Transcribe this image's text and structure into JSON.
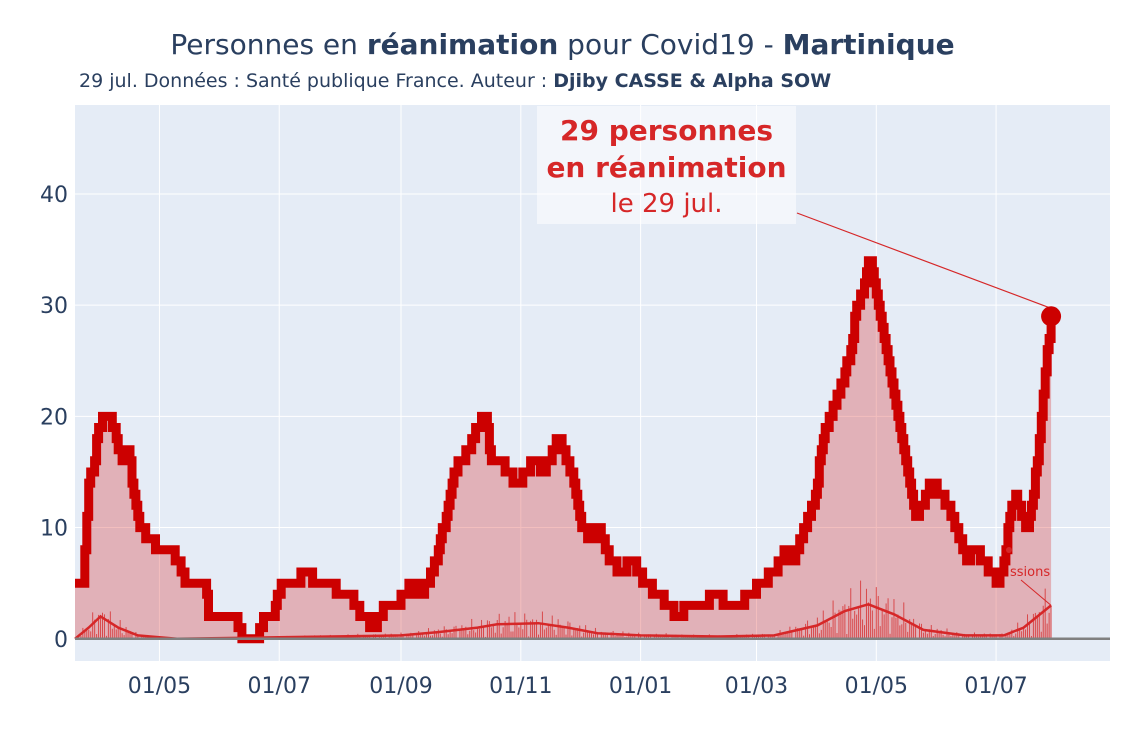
{
  "header": {
    "title_pre": "Personnes en ",
    "title_bold1": "réanimation",
    "title_mid": " pour Covid19 - ",
    "title_bold2": "Martinique",
    "subtitle_pre": "29 jul. Données : Santé publique France. Auteur : ",
    "subtitle_bold": "Djiby CASSE & Alpha SOW"
  },
  "annotation": {
    "line1": "29 personnes",
    "line2": "en réanimation",
    "line3": "le 29 jul."
  },
  "admissions_label": "ssions",
  "colors": {
    "main_line": "#cc0000",
    "fill": "rgba(214,39,40,0.30)",
    "admissions": "#d62728",
    "plot_bg": "#e5ecf6",
    "grid": "#ffffff",
    "zero_line": "#808080",
    "text": "#2a3f5f"
  },
  "chart_data": {
    "type": "area",
    "title": "Personnes en réanimation pour Covid19 - Martinique",
    "x_start": "2020-03-19",
    "x_end": "2021-07-29",
    "xlim": [
      "2020-03-19",
      "2021-08-28"
    ],
    "ylim": [
      -2,
      48
    ],
    "x_ticks": [
      {
        "date": "2020-05-01",
        "label": "01/05"
      },
      {
        "date": "2020-07-01",
        "label": "01/07"
      },
      {
        "date": "2020-09-01",
        "label": "01/09"
      },
      {
        "date": "2020-11-01",
        "label": "01/11"
      },
      {
        "date": "2021-01-01",
        "label": "01/01"
      },
      {
        "date": "2021-03-01",
        "label": "01/03"
      },
      {
        "date": "2021-05-01",
        "label": "01/05"
      },
      {
        "date": "2021-07-01",
        "label": "01/07"
      }
    ],
    "y_ticks": [
      0,
      10,
      20,
      30,
      40
    ],
    "grid": true,
    "series": [
      {
        "name": "réanimation",
        "points": [
          [
            "2020-03-19",
            5
          ],
          [
            "2020-03-23",
            5
          ],
          [
            "2020-03-26",
            14
          ],
          [
            "2020-03-28",
            15
          ],
          [
            "2020-03-31",
            19
          ],
          [
            "2020-04-03",
            20
          ],
          [
            "2020-04-06",
            20
          ],
          [
            "2020-04-09",
            18
          ],
          [
            "2020-04-12",
            16
          ],
          [
            "2020-04-15",
            17
          ],
          [
            "2020-04-18",
            13
          ],
          [
            "2020-04-21",
            10
          ],
          [
            "2020-04-26",
            9
          ],
          [
            "2020-05-01",
            8
          ],
          [
            "2020-05-06",
            8
          ],
          [
            "2020-05-10",
            7
          ],
          [
            "2020-05-14",
            5
          ],
          [
            "2020-05-20",
            5
          ],
          [
            "2020-05-24",
            5
          ],
          [
            "2020-05-26",
            2
          ],
          [
            "2020-06-08",
            2
          ],
          [
            "2020-06-12",
            0
          ],
          [
            "2020-06-20",
            0
          ],
          [
            "2020-06-24",
            2
          ],
          [
            "2020-06-28",
            2
          ],
          [
            "2020-07-02",
            5
          ],
          [
            "2020-07-10",
            5
          ],
          [
            "2020-07-14",
            6
          ],
          [
            "2020-07-21",
            5
          ],
          [
            "2020-08-06",
            4
          ],
          [
            "2020-08-12",
            2
          ],
          [
            "2020-08-18",
            1
          ],
          [
            "2020-08-24",
            3
          ],
          [
            "2020-08-29",
            3
          ],
          [
            "2020-09-03",
            4
          ],
          [
            "2020-09-07",
            5
          ],
          [
            "2020-09-10",
            4
          ],
          [
            "2020-09-15",
            5
          ],
          [
            "2020-09-20",
            8
          ],
          [
            "2020-09-25",
            12
          ],
          [
            "2020-09-28",
            15
          ],
          [
            "2020-10-02",
            16
          ],
          [
            "2020-10-06",
            17
          ],
          [
            "2020-10-10",
            19
          ],
          [
            "2020-10-14",
            20
          ],
          [
            "2020-10-17",
            16
          ],
          [
            "2020-10-21",
            16
          ],
          [
            "2020-10-25",
            15
          ],
          [
            "2020-10-30",
            14
          ],
          [
            "2020-11-04",
            15
          ],
          [
            "2020-11-08",
            16
          ],
          [
            "2020-11-12",
            15
          ],
          [
            "2020-11-16",
            16
          ],
          [
            "2020-11-20",
            18
          ],
          [
            "2020-11-24",
            16
          ],
          [
            "2020-11-28",
            14
          ],
          [
            "2020-12-02",
            10
          ],
          [
            "2020-12-06",
            9
          ],
          [
            "2020-12-10",
            10
          ],
          [
            "2020-12-16",
            7
          ],
          [
            "2020-12-22",
            6
          ],
          [
            "2020-12-28",
            7
          ],
          [
            "2021-01-03",
            5
          ],
          [
            "2021-01-10",
            4
          ],
          [
            "2021-01-14",
            3
          ],
          [
            "2021-01-20",
            2
          ],
          [
            "2021-01-26",
            3
          ],
          [
            "2021-02-01",
            3
          ],
          [
            "2021-02-08",
            4
          ],
          [
            "2021-02-14",
            3
          ],
          [
            "2021-02-20",
            3
          ],
          [
            "2021-02-26",
            4
          ],
          [
            "2021-03-04",
            5
          ],
          [
            "2021-03-10",
            6
          ],
          [
            "2021-03-16",
            8
          ],
          [
            "2021-03-20",
            7
          ],
          [
            "2021-03-25",
            10
          ],
          [
            "2021-03-30",
            12
          ],
          [
            "2021-04-04",
            18
          ],
          [
            "2021-04-09",
            21
          ],
          [
            "2021-04-14",
            23
          ],
          [
            "2021-04-18",
            26
          ],
          [
            "2021-04-21",
            30
          ],
          [
            "2021-04-24",
            31
          ],
          [
            "2021-04-27",
            34
          ],
          [
            "2021-04-29",
            33
          ],
          [
            "2021-05-03",
            29
          ],
          [
            "2021-05-07",
            25
          ],
          [
            "2021-05-12",
            20
          ],
          [
            "2021-05-17",
            15
          ],
          [
            "2021-05-21",
            11
          ],
          [
            "2021-05-25",
            12
          ],
          [
            "2021-05-29",
            14
          ],
          [
            "2021-06-02",
            13
          ],
          [
            "2021-06-07",
            12
          ],
          [
            "2021-06-12",
            9
          ],
          [
            "2021-06-16",
            7
          ],
          [
            "2021-06-20",
            8
          ],
          [
            "2021-06-24",
            7
          ],
          [
            "2021-06-28",
            6
          ],
          [
            "2021-07-02",
            5
          ],
          [
            "2021-07-05",
            7
          ],
          [
            "2021-07-08",
            11
          ],
          [
            "2021-07-11",
            13
          ],
          [
            "2021-07-14",
            11
          ],
          [
            "2021-07-17",
            10
          ],
          [
            "2021-07-20",
            13
          ],
          [
            "2021-07-23",
            18
          ],
          [
            "2021-07-26",
            24
          ],
          [
            "2021-07-29",
            29
          ]
        ]
      },
      {
        "name": "admissions",
        "points": [
          [
            "2020-03-19",
            0
          ],
          [
            "2020-03-26",
            1
          ],
          [
            "2020-04-01",
            2
          ],
          [
            "2020-04-10",
            1
          ],
          [
            "2020-04-20",
            0.3
          ],
          [
            "2020-05-10",
            0
          ],
          [
            "2020-09-01",
            0.3
          ],
          [
            "2020-09-20",
            0.6
          ],
          [
            "2020-10-10",
            1
          ],
          [
            "2020-10-20",
            1.3
          ],
          [
            "2020-11-10",
            1.4
          ],
          [
            "2020-11-25",
            1.0
          ],
          [
            "2020-12-10",
            0.5
          ],
          [
            "2021-01-01",
            0.3
          ],
          [
            "2021-02-10",
            0.2
          ],
          [
            "2021-03-10",
            0.3
          ],
          [
            "2021-04-01",
            1.2
          ],
          [
            "2021-04-15",
            2.5
          ],
          [
            "2021-04-27",
            3.1
          ],
          [
            "2021-05-10",
            2.2
          ],
          [
            "2021-05-25",
            0.8
          ],
          [
            "2021-06-15",
            0.3
          ],
          [
            "2021-07-05",
            0.3
          ],
          [
            "2021-07-15",
            1.0
          ],
          [
            "2021-07-22",
            2.0
          ],
          [
            "2021-07-29",
            3.0
          ]
        ]
      }
    ]
  }
}
